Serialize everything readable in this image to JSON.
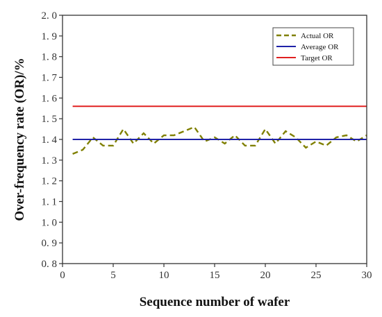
{
  "chart_data": {
    "type": "line",
    "xlabel": "Sequence number of wafer",
    "ylabel": "Over-frequency rate (OR)/%",
    "xlim": [
      0,
      30
    ],
    "ylim": [
      0.8,
      2.0
    ],
    "x_ticks": [
      0,
      5,
      10,
      15,
      20,
      25,
      30
    ],
    "x_tick_labels": [
      "0",
      "5",
      "10",
      "15",
      "20",
      "25",
      "30"
    ],
    "y_ticks": [
      0.8,
      0.9,
      1.0,
      1.1,
      1.2,
      1.3,
      1.4,
      1.5,
      1.6,
      1.7,
      1.8,
      1.9,
      2.0
    ],
    "y_tick_labels": [
      "0. 8",
      "0. 9",
      "1. 0",
      "1. 1",
      "1. 2",
      "1. 3",
      "1. 4",
      "1. 5",
      "1. 6",
      "1. 7",
      "1. 8",
      "1. 9",
      "2. 0"
    ],
    "grid": false,
    "legend_position": "top-right",
    "series": [
      {
        "name": "Actual OR",
        "color": "#808000",
        "style": "dashed",
        "x": [
          1,
          2,
          3,
          4,
          5,
          6,
          7,
          8,
          9,
          10,
          11,
          12,
          13,
          14,
          15,
          16,
          17,
          18,
          19,
          20,
          21,
          22,
          23,
          24,
          25,
          26,
          27,
          28,
          29,
          30
        ],
        "values": [
          1.33,
          1.35,
          1.41,
          1.37,
          1.37,
          1.45,
          1.38,
          1.43,
          1.38,
          1.42,
          1.42,
          1.44,
          1.46,
          1.39,
          1.41,
          1.38,
          1.42,
          1.37,
          1.37,
          1.45,
          1.38,
          1.44,
          1.41,
          1.36,
          1.39,
          1.37,
          1.41,
          1.42,
          1.39,
          1.42
        ]
      },
      {
        "name": "Average OR",
        "color": "#1f22a8",
        "style": "solid",
        "x": [
          1,
          30
        ],
        "values": [
          1.4,
          1.4
        ]
      },
      {
        "name": "Target OR",
        "color": "#e02020",
        "style": "solid",
        "x": [
          1,
          30
        ],
        "values": [
          1.56,
          1.56
        ]
      }
    ]
  }
}
